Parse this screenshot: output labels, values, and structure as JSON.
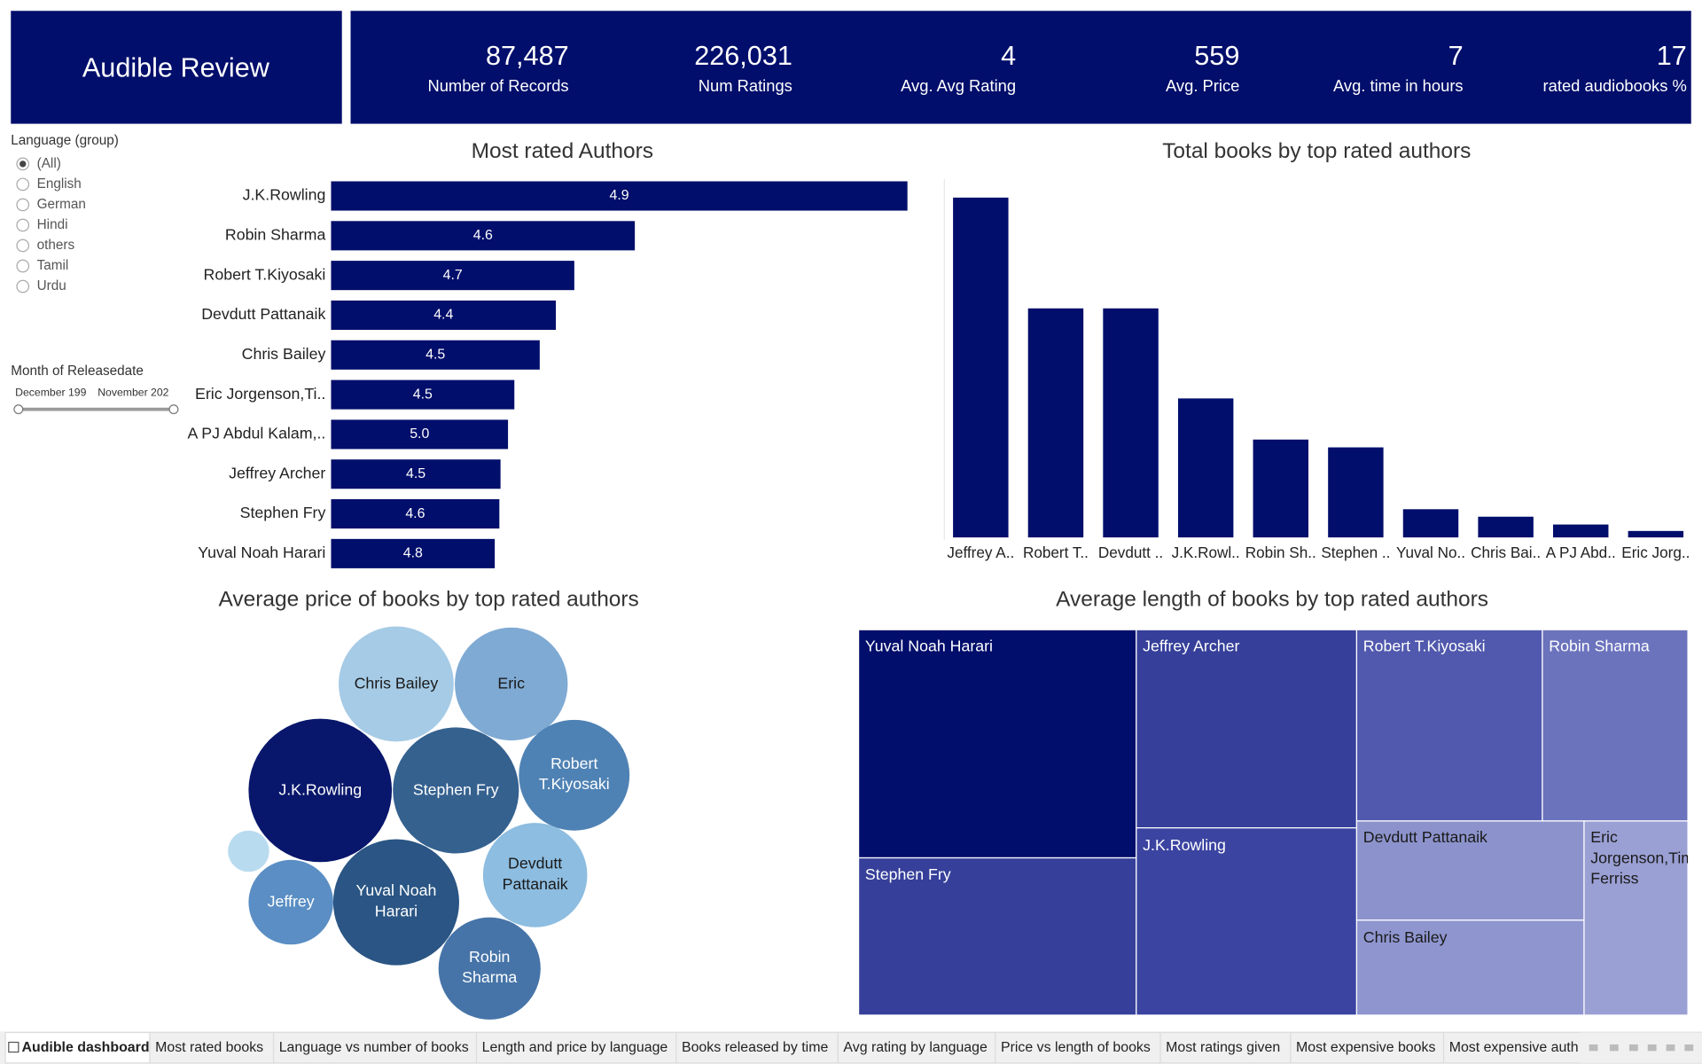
{
  "header": {
    "title": "Audible Review",
    "kpis": [
      {
        "value": "87,487",
        "label": "Number of Records"
      },
      {
        "value": "226,031",
        "label": "Num Ratings"
      },
      {
        "value": "4",
        "label": "Avg. Avg Rating"
      },
      {
        "value": "559",
        "label": "Avg. Price"
      },
      {
        "value": "7",
        "label": "Avg. time in hours"
      },
      {
        "value": "17",
        "label": "rated audiobooks %"
      }
    ]
  },
  "filters": {
    "language": {
      "title": "Language (group)",
      "options": [
        "(All)",
        "English",
        "German",
        "Hindi",
        "others",
        "Tamil",
        "Urdu"
      ],
      "selected": 0
    },
    "month": {
      "title": "Month of Releasedate",
      "start": "December 199",
      "end": "November 202"
    }
  },
  "chart_data": [
    {
      "type": "hbar",
      "title": "Most rated Authors",
      "color": "#020e6b",
      "categories": [
        "J.K.Rowling",
        "Robin Sharma",
        "Robert T.Kiyosaki",
        "Devdutt Pattanaik",
        "Chris Bailey",
        "Eric Jorgenson,Ti..",
        "A PJ Abdul Kalam,..",
        "Jeffrey Archer",
        "Stephen Fry",
        "Yuval Noah Harari"
      ],
      "values": [
        100,
        52.7,
        42.2,
        39,
        36.2,
        31.8,
        30.7,
        29.4,
        29.2,
        28.4
      ],
      "rating_labels": [
        "4.9",
        "4.6",
        "4.7",
        "4.4",
        "4.5",
        "4.5",
        "5.0",
        "4.5",
        "4.6",
        "4.8"
      ]
    },
    {
      "type": "bar",
      "title": "Total books by top rated authors",
      "color": "#020e6b",
      "categories": [
        "Jeffrey A..",
        "Robert T..",
        "Devdutt ..",
        "J.K.Rowl..",
        "Robin Sh..",
        "Stephen ..",
        "Yuval No..",
        "Chris Bai..",
        "A PJ Abd..",
        "Eric Jorg.."
      ],
      "values": [
        100,
        67.4,
        67.4,
        40.9,
        28.8,
        26.5,
        8.3,
        6.1,
        3.8,
        1.9
      ]
    },
    {
      "type": "bubble",
      "title": "Average price of books by top rated authors",
      "labels": [
        "Chris Bailey",
        "Eric",
        "J.K.Rowling",
        "Stephen Fry",
        "Robert T.Kiyosaki",
        null,
        "Jeffrey",
        "Yuval Noah Harari",
        "Devdutt Pattanaik",
        "Robin Sharma"
      ],
      "values": [
        562,
        541,
        871,
        673,
        520,
        72,
        304,
        673,
        461,
        442
      ],
      "colors": [
        "#a6cbe6",
        "#7faad3",
        "#08176b",
        "#35618f",
        "#4f82b4",
        "#b9dbef",
        "#5a8ec4",
        "#2a5584",
        "#8dbde0",
        "#4674a8"
      ]
    },
    {
      "type": "treemap",
      "title": "Average length of books by top rated authors",
      "categories": [
        "Yuval Noah Harari",
        "Stephen Fry",
        "Jeffrey Archer",
        "J.K.Rowling",
        "Robert T.Kiyosaki",
        "Robin Sharma",
        "Devdutt Pattanaik",
        "Chris Bailey",
        "Eric Jorgenson,Tim Ferriss"
      ],
      "values": [
        13.2,
        9.1,
        9.1,
        8.6,
        7.4,
        5.8,
        4.7,
        4.5,
        4.2
      ],
      "colors": [
        "#020e6b",
        "#36409a",
        "#36409a",
        "#3b44a0",
        "#5059ad",
        "#6b73bd",
        "#8c93cc",
        "#8f96cf",
        "#9aa0d4"
      ]
    }
  ],
  "tabs": {
    "items": [
      "Audible dashboard",
      "Most rated books",
      "Language vs number of books",
      "Length and price by language",
      "Books released by time",
      "Avg rating by language",
      "Price vs length of books",
      "Most ratings given",
      "Most expensive books",
      "Most expensive auth"
    ],
    "active": 0
  }
}
